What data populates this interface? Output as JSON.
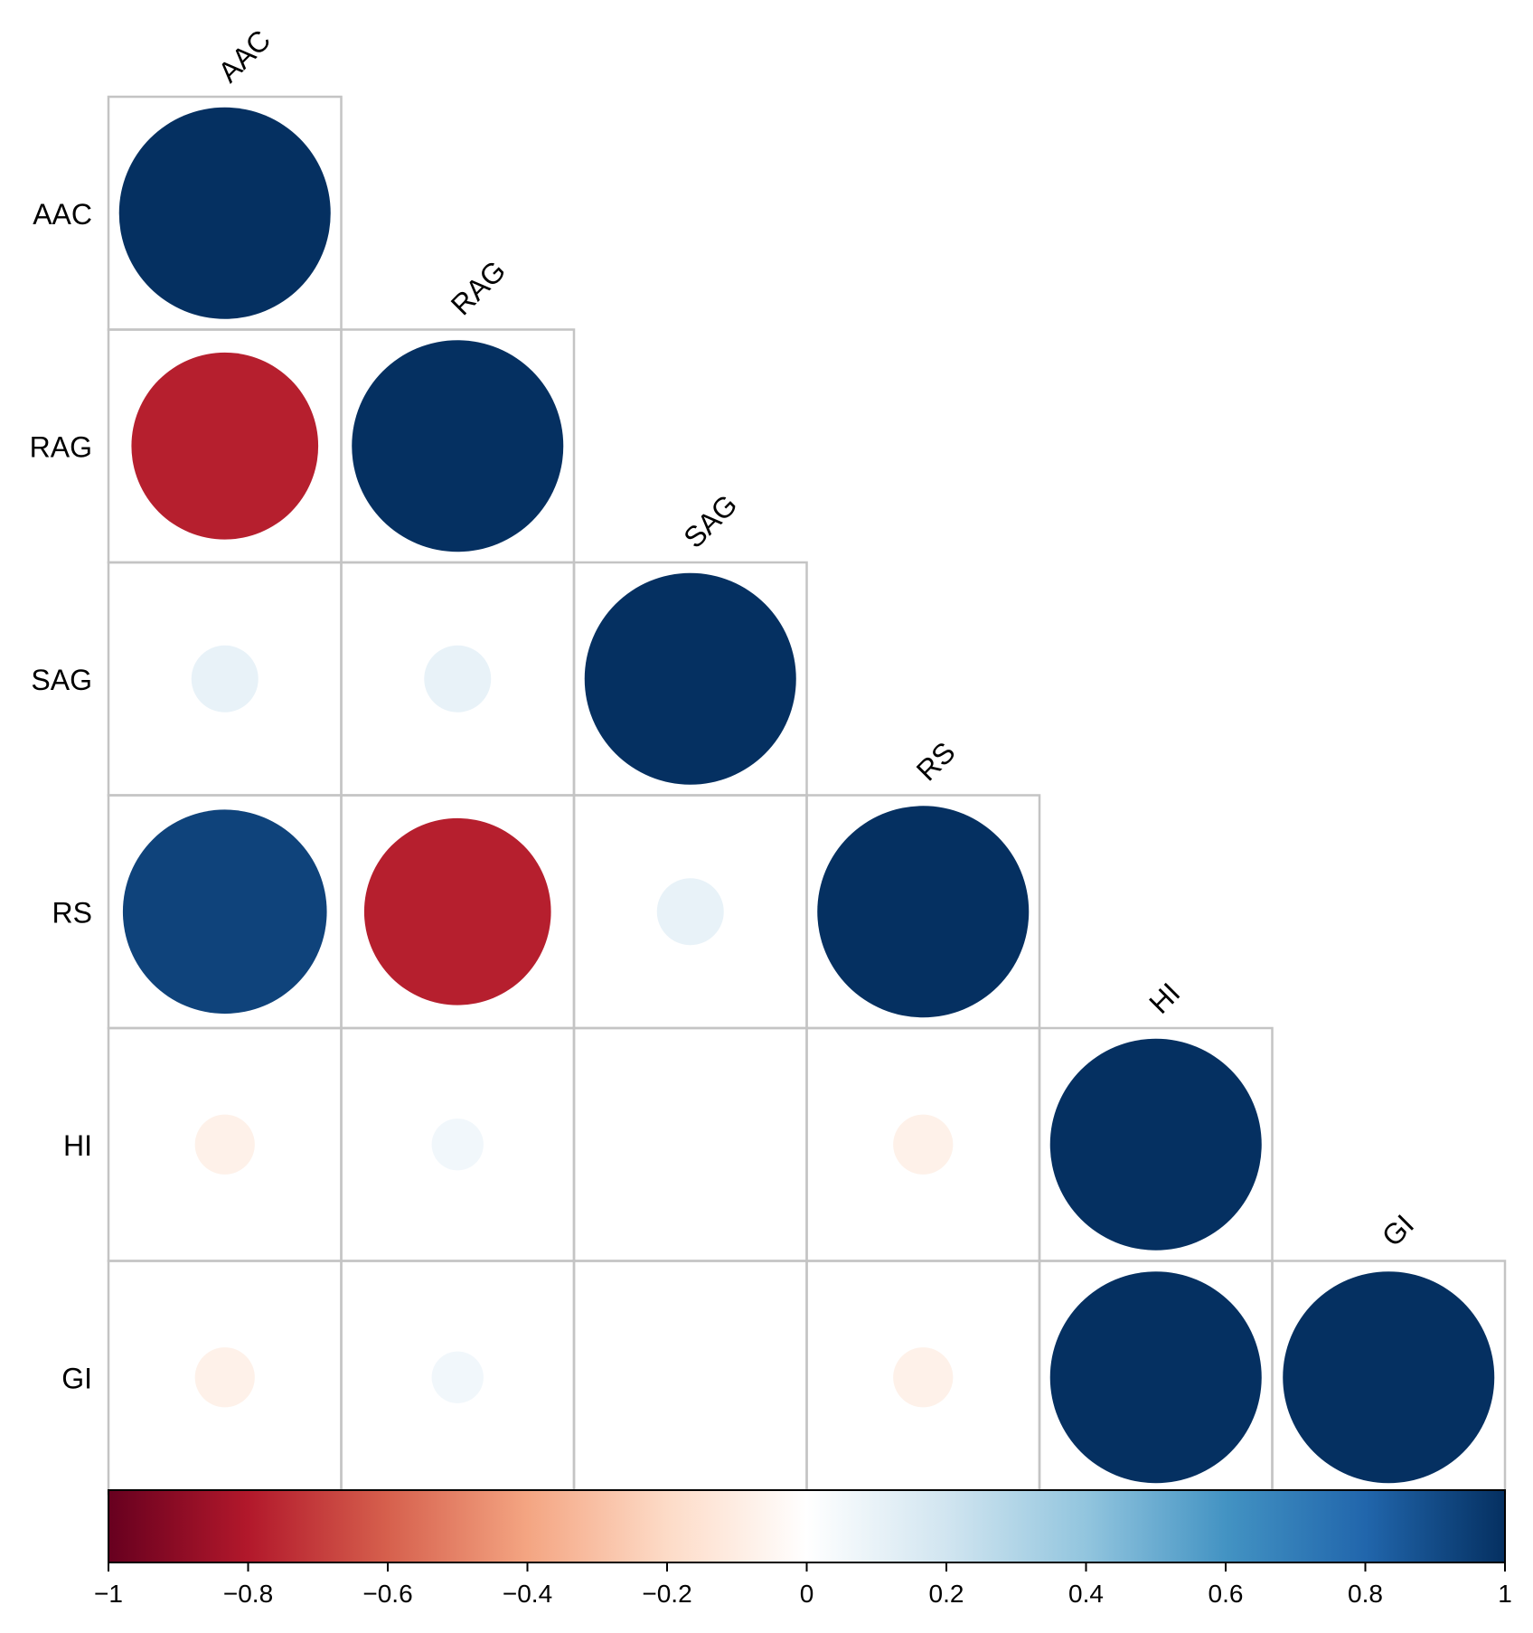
{
  "chart_data": {
    "type": "heatmap",
    "style": "correlation-matrix-circles",
    "layout": "lower-triangle",
    "variables": [
      "AAC",
      "RAG",
      "SAG",
      "RS",
      "HI",
      "GI"
    ],
    "correlations": [
      [
        1.0,
        -0.78,
        0.1,
        0.93,
        -0.08,
        -0.08
      ],
      [
        -0.78,
        1.0,
        0.1,
        -0.78,
        0.06,
        0.06
      ],
      [
        0.1,
        0.1,
        1.0,
        0.1,
        0.0,
        0.0
      ],
      [
        0.93,
        -0.78,
        0.1,
        1.0,
        -0.08,
        -0.08
      ],
      [
        -0.08,
        0.06,
        0.0,
        -0.08,
        1.0,
        1.0
      ],
      [
        -0.08,
        0.06,
        0.0,
        -0.08,
        1.0,
        1.0
      ]
    ],
    "colorbar": {
      "range": [
        -1,
        1
      ],
      "ticks": [
        "−1",
        "−0.8",
        "−0.6",
        "−0.4",
        "−0.2",
        "0",
        "0.2",
        "0.4",
        "0.6",
        "0.8",
        "1"
      ],
      "tick_values": [
        -1,
        -0.8,
        -0.6,
        -0.4,
        -0.2,
        0,
        0.2,
        0.4,
        0.6,
        0.8,
        1
      ],
      "colors": [
        "#67001f",
        "#b2182b",
        "#d6604d",
        "#f4a582",
        "#fddbc7",
        "#ffffff",
        "#d1e5f0",
        "#92c5de",
        "#4393c3",
        "#2166ac",
        "#053061"
      ],
      "placement": "bottom"
    },
    "grid_color": "#c4c4c4"
  }
}
